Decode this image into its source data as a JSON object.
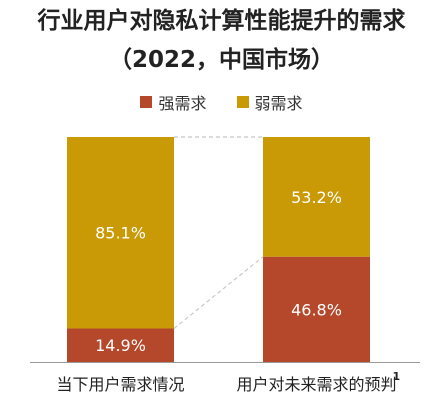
{
  "chart_data": {
    "type": "bar",
    "stacked": true,
    "percent": true,
    "title": "行业用户对隐私计算性能提升的需求",
    "subtitle": "（2022，中国市场）",
    "categories": [
      "当下用户需求情况",
      "用户对未来需求的预判"
    ],
    "category_footnotes": [
      "",
      "1"
    ],
    "series": [
      {
        "name": "强需求",
        "color": "#b5482a",
        "values": [
          14.9,
          46.8
        ],
        "labels": [
          "14.9%",
          "46.8%"
        ]
      },
      {
        "name": "弱需求",
        "color": "#c99a06",
        "values": [
          85.1,
          53.2
        ],
        "labels": [
          "85.1%",
          "53.2%"
        ]
      }
    ],
    "ylim": [
      0,
      100
    ],
    "legend_position": "top",
    "connector_lines": true
  }
}
